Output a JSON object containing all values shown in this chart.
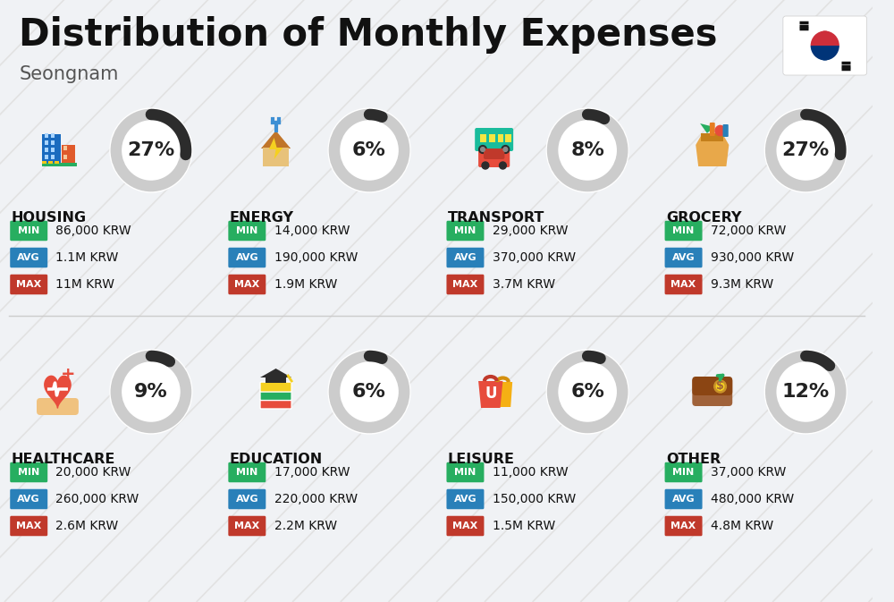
{
  "title": "Distribution of Monthly Expenses",
  "subtitle": "Seongnam",
  "background_color": "#f0f2f5",
  "categories": [
    {
      "name": "HOUSING",
      "pct": 27,
      "min": "86,000 KRW",
      "avg": "1.1M KRW",
      "max": "11M KRW",
      "row": 0,
      "col": 0
    },
    {
      "name": "ENERGY",
      "pct": 6,
      "min": "14,000 KRW",
      "avg": "190,000 KRW",
      "max": "1.9M KRW",
      "row": 0,
      "col": 1
    },
    {
      "name": "TRANSPORT",
      "pct": 8,
      "min": "29,000 KRW",
      "avg": "370,000 KRW",
      "max": "3.7M KRW",
      "row": 0,
      "col": 2
    },
    {
      "name": "GROCERY",
      "pct": 27,
      "min": "72,000 KRW",
      "avg": "930,000 KRW",
      "max": "9.3M KRW",
      "row": 0,
      "col": 3
    },
    {
      "name": "HEALTHCARE",
      "pct": 9,
      "min": "20,000 KRW",
      "avg": "260,000 KRW",
      "max": "2.6M KRW",
      "row": 1,
      "col": 0
    },
    {
      "name": "EDUCATION",
      "pct": 6,
      "min": "17,000 KRW",
      "avg": "220,000 KRW",
      "max": "2.2M KRW",
      "row": 1,
      "col": 1
    },
    {
      "name": "LEISURE",
      "pct": 6,
      "min": "11,000 KRW",
      "avg": "150,000 KRW",
      "max": "1.5M KRW",
      "row": 1,
      "col": 2
    },
    {
      "name": "OTHER",
      "pct": 12,
      "min": "37,000 KRW",
      "avg": "480,000 KRW",
      "max": "4.8M KRW",
      "row": 1,
      "col": 3
    }
  ],
  "min_color": "#27ae60",
  "avg_color": "#2980b9",
  "max_color": "#c0392b",
  "arc_color": "#2c2c2c",
  "arc_bg_color": "#cccccc",
  "title_fontsize": 30,
  "subtitle_fontsize": 15,
  "cat_fontsize": 11.5,
  "pct_fontsize": 16,
  "stat_fontsize": 10
}
